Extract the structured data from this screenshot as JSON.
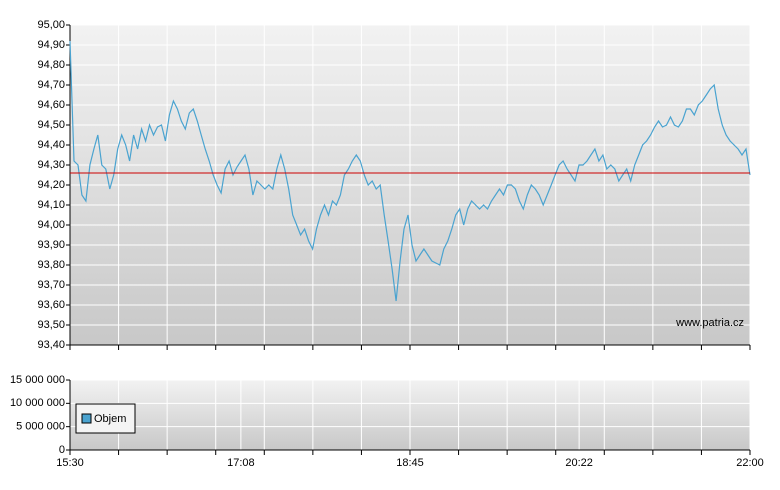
{
  "chart_data": [
    {
      "type": "line",
      "annotation": "www.patria.cz",
      "series": [
        {
          "color": "#4aa3d0",
          "values": [
            94.92,
            94.32,
            94.3,
            94.15,
            94.12,
            94.3,
            94.38,
            94.45,
            94.3,
            94.28,
            94.18,
            94.25,
            94.38,
            94.45,
            94.4,
            94.32,
            94.45,
            94.38,
            94.48,
            94.42,
            94.5,
            94.45,
            94.49,
            94.5,
            94.42,
            94.55,
            94.62,
            94.58,
            94.52,
            94.48,
            94.56,
            94.58,
            94.52,
            94.45,
            94.38,
            94.32,
            94.25,
            94.2,
            94.16,
            94.28,
            94.32,
            94.25,
            94.29,
            94.32,
            94.35,
            94.28,
            94.15,
            94.22,
            94.2,
            94.18,
            94.2,
            94.18,
            94.28,
            94.35,
            94.28,
            94.18,
            94.05,
            94.0,
            93.95,
            93.98,
            93.92,
            93.88,
            93.98,
            94.05,
            94.1,
            94.05,
            94.12,
            94.1,
            94.15,
            94.25,
            94.28,
            94.32,
            94.35,
            94.32,
            94.25,
            94.2,
            94.22,
            94.18,
            94.2,
            94.05,
            93.92,
            93.78,
            93.62,
            93.82,
            93.98,
            94.05,
            93.9,
            93.82,
            93.85,
            93.88,
            93.85,
            93.82,
            93.81,
            93.8,
            93.88,
            93.92,
            93.98,
            94.05,
            94.08,
            94.0,
            94.08,
            94.12,
            94.1,
            94.08,
            94.1,
            94.08,
            94.12,
            94.15,
            94.18,
            94.15,
            94.2,
            94.2,
            94.18,
            94.12,
            94.08,
            94.15,
            94.2,
            94.18,
            94.15,
            94.1,
            94.15,
            94.2,
            94.25,
            94.3,
            94.32,
            94.28,
            94.25,
            94.22,
            94.3,
            94.3,
            94.32,
            94.35,
            94.38,
            94.32,
            94.35,
            94.28,
            94.3,
            94.28,
            94.22,
            94.25,
            94.28,
            94.22,
            94.3,
            94.35,
            94.4,
            94.42,
            94.45,
            94.49,
            94.52,
            94.49,
            94.5,
            94.54,
            94.5,
            94.49,
            94.52,
            94.58,
            94.58,
            94.55,
            94.6,
            94.62,
            94.65,
            94.68,
            94.7,
            94.58,
            94.5,
            94.45,
            94.42,
            94.4,
            94.38,
            94.35,
            94.38,
            94.25
          ]
        }
      ],
      "reference_line": {
        "value": 94.26,
        "color": "#cc0000"
      },
      "xlim": [
        "15:30",
        "22:00"
      ],
      "ylim": [
        93.4,
        95
      ],
      "yticks": [
        {
          "value": 93.4,
          "label": "93,40"
        },
        {
          "value": 93.5,
          "label": "93,50"
        },
        {
          "value": 93.6,
          "label": "93,60"
        },
        {
          "value": 93.7,
          "label": "93,70"
        },
        {
          "value": 93.8,
          "label": "93,80"
        },
        {
          "value": 93.9,
          "label": "93,90"
        },
        {
          "value": 94,
          "label": "94,00"
        },
        {
          "value": 94.1,
          "label": "94,10"
        },
        {
          "value": 94.2,
          "label": "94,20"
        },
        {
          "value": 94.3,
          "label": "94,30"
        },
        {
          "value": 94.4,
          "label": "94,40"
        },
        {
          "value": 94.5,
          "label": "94,50"
        },
        {
          "value": 94.6,
          "label": "94,60"
        },
        {
          "value": 94.7,
          "label": "94,70"
        },
        {
          "value": 94.8,
          "label": "94,80"
        },
        {
          "value": 94.9,
          "label": "94,90"
        },
        {
          "value": 95,
          "label": "95,00"
        }
      ],
      "grid": true
    },
    {
      "type": "bar",
      "series": [
        {
          "name": "Objem",
          "color": "#4aa3d0",
          "values": []
        }
      ],
      "xlim": [
        "15:30",
        "22:00"
      ],
      "xticks": [
        "15:30",
        "17:08",
        "18:45",
        "20:22",
        "22:00"
      ],
      "ylim": [
        0,
        15000000
      ],
      "yticks": [
        0,
        {
          "value": 5000000,
          "label": "5 000 000"
        },
        {
          "value": 10000000,
          "label": "10 000 000"
        },
        {
          "value": 15000000,
          "label": "15 000 000"
        }
      ],
      "grid": true,
      "legend": "bottom-left"
    }
  ]
}
